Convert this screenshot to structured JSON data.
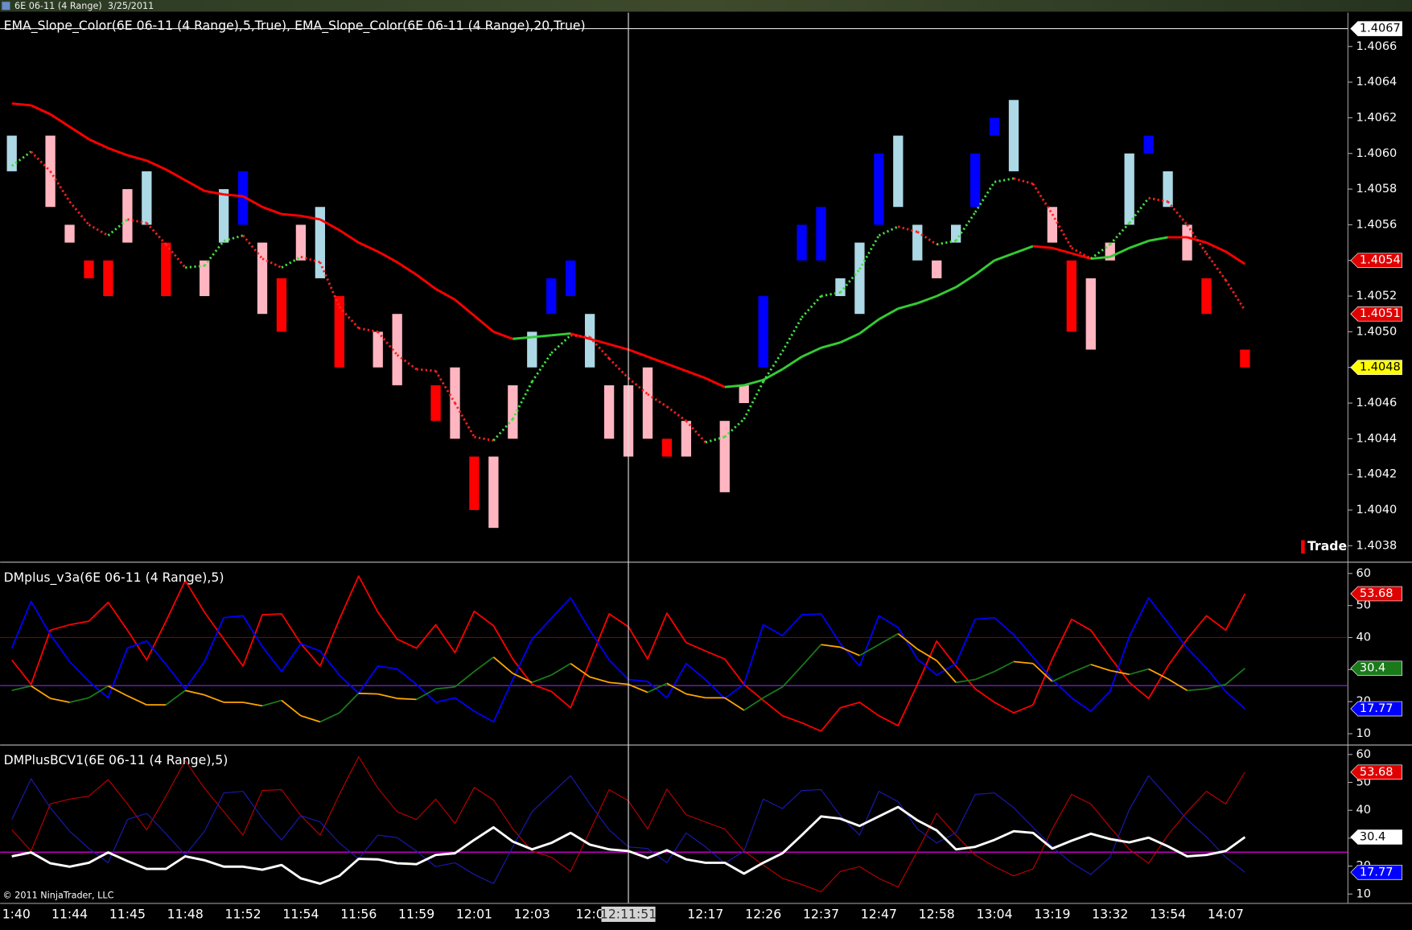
{
  "window_title": "6E 06-11 (4 Range)  3/25/2011",
  "copyright": "© 2011 NinjaTrader, LLC",
  "crosshair": {
    "x": 32,
    "label": "12:11:51"
  },
  "chart_data": [
    {
      "type": "range_bar",
      "title": "EMA_Slope_Color(6E 06-11 (4 Range),5,True), EMA_Slope_Color(6E 06-11 (4 Range),20,True)",
      "ylim": [
        1.40372,
        1.40679
      ],
      "yticks": [
        1.4038,
        {
          "value": 1.404,
          "label": "1.4040"
        },
        1.4042,
        1.4044,
        1.4046,
        1.4048,
        {
          "value": 1.405,
          "label": "1.4050"
        },
        1.4052,
        1.4054,
        1.4056,
        1.4058,
        {
          "value": 1.406,
          "label": "1.4060"
        },
        1.4062,
        1.4064,
        1.4066
      ],
      "price": {
        "name": "Trade",
        "legend_color": "#ff0000",
        "high": [
          1.4061,
          null,
          1.4061,
          1.4056,
          1.4054,
          1.4054,
          1.4058,
          1.4059,
          1.4055,
          null,
          1.4054,
          1.4058,
          1.4059,
          1.4055,
          1.4053,
          1.4056,
          1.4057,
          1.4052,
          null,
          1.405,
          1.4051,
          null,
          1.4047,
          1.4048,
          1.4043,
          1.4043,
          1.4047,
          1.405,
          1.4053,
          1.4054,
          1.4051,
          1.4047,
          1.4047,
          1.4048,
          1.4044,
          1.4045,
          null,
          1.4045,
          1.4047,
          1.4052,
          null,
          1.4056,
          1.4057,
          1.4053,
          1.4055,
          1.406,
          1.4061,
          1.4056,
          1.4054,
          1.4056,
          1.406,
          1.4062,
          1.4063,
          null,
          1.4057,
          1.4054,
          1.4053,
          1.4055,
          1.406,
          1.4061,
          1.4059,
          1.4056,
          1.4053,
          null,
          1.4049
        ],
        "low": [
          1.4059,
          null,
          1.4057,
          1.4055,
          1.4053,
          1.4052,
          1.4055,
          1.4056,
          1.4052,
          null,
          1.4052,
          1.4055,
          1.4056,
          1.4051,
          1.405,
          1.4054,
          1.4053,
          1.4048,
          null,
          1.4048,
          1.4047,
          null,
          1.4045,
          1.4044,
          1.404,
          1.4039,
          1.4044,
          1.4048,
          1.4051,
          1.4052,
          1.4048,
          1.4044,
          1.4043,
          1.4044,
          1.4043,
          1.4043,
          null,
          1.4041,
          1.4046,
          1.4048,
          null,
          1.4054,
          1.4054,
          1.4052,
          1.4051,
          1.4056,
          1.4057,
          1.4054,
          1.4053,
          1.4055,
          1.4057,
          1.4061,
          1.4059,
          null,
          1.4055,
          1.405,
          1.4049,
          1.4054,
          1.4056,
          1.406,
          1.4057,
          1.4054,
          1.4051,
          null,
          1.4048
        ],
        "colors": [
          "#add8e6",
          null,
          "#ffb6c1",
          "#ffb6c1",
          "#ff0000",
          "#ff0000",
          "#ffb6c1",
          "#add8e6",
          "#ff0000",
          null,
          "#ffb6c1",
          "#add8e6",
          "#0000ff",
          "#ffb6c1",
          "#ff0000",
          "#ffb6c1",
          "#add8e6",
          "#ff0000",
          null,
          "#ffb6c1",
          "#ffb6c1",
          null,
          "#ff0000",
          "#ffb6c1",
          "#ff0000",
          "#ffb6c1",
          "#ffb6c1",
          "#add8e6",
          "#0000ff",
          "#0000ff",
          "#add8e6",
          "#ffb6c1",
          "#ffb6c1",
          "#ffb6c1",
          "#ff0000",
          "#ffb6c1",
          null,
          "#ffb6c1",
          "#ffb6c1",
          "#0000ff",
          null,
          "#0000ff",
          "#0000ff",
          "#add8e6",
          "#add8e6",
          "#0000ff",
          "#add8e6",
          "#add8e6",
          "#ffb6c1",
          "#add8e6",
          "#0000ff",
          "#0000ff",
          "#add8e6",
          null,
          "#ffb6c1",
          "#ff0000",
          "#ffb6c1",
          "#ffb6c1",
          "#add8e6",
          "#0000ff",
          "#add8e6",
          "#ffb6c1",
          "#ff0000",
          null,
          "#ff0000"
        ]
      },
      "series": [
        {
          "up_color": "#33cc33",
          "down_color": "#ff0000",
          "style": "thick",
          "values": [
            1.40628,
            1.40627,
            1.40622,
            1.40615,
            1.40608,
            1.40603,
            1.40599,
            1.40596,
            1.40591,
            1.40585,
            1.40579,
            1.40577,
            1.40576,
            1.4057,
            1.40566,
            1.40565,
            1.40563,
            1.40557,
            1.4055,
            1.40545,
            1.40539,
            1.40532,
            1.40524,
            1.40518,
            1.40509,
            1.405,
            1.40496,
            1.40497,
            1.40498,
            1.40499,
            1.40496,
            1.40493,
            1.4049,
            1.40486,
            1.40482,
            1.40478,
            1.40474,
            1.40469,
            1.4047,
            1.40473,
            1.40479,
            1.40486,
            1.40491,
            1.40494,
            1.40499,
            1.40507,
            1.40513,
            1.40516,
            1.4052,
            1.40525,
            1.40532,
            1.4054,
            1.40544,
            1.40548,
            1.40547,
            1.40544,
            1.40541,
            1.40542,
            1.40547,
            1.40551,
            1.40553,
            1.40553,
            1.4055,
            1.40545,
            1.40538
          ]
        },
        {
          "up_color": "#44dd44",
          "down_color": "#ff2020",
          "style": "dotted",
          "values": [
            1.40593,
            1.40601,
            1.4059,
            1.40573,
            1.4056,
            1.40554,
            1.40563,
            1.40561,
            1.40549,
            1.40536,
            1.40537,
            1.40551,
            1.40554,
            1.40541,
            1.40536,
            1.40542,
            1.40539,
            1.40514,
            1.40502,
            1.405,
            1.40487,
            1.40479,
            1.40478,
            1.4046,
            1.40441,
            1.40439,
            1.40451,
            1.40472,
            1.40488,
            1.40498,
            1.40497,
            1.40485,
            1.40474,
            1.40465,
            1.40458,
            1.4045,
            1.40438,
            1.40441,
            1.40451,
            1.40472,
            1.40489,
            1.40508,
            1.4052,
            1.40522,
            1.40535,
            1.40554,
            1.40559,
            1.40556,
            1.40549,
            1.40551,
            1.40567,
            1.40584,
            1.40586,
            1.40583,
            1.40566,
            1.40547,
            1.40541,
            1.40549,
            1.40561,
            1.40575,
            1.40573,
            1.4056,
            1.40544,
            1.40529,
            1.40512
          ]
        }
      ],
      "markers": [
        {
          "value": 1.4067,
          "color": "#ffffff",
          "text_color": "#000000",
          "line": true
        },
        {
          "value": 1.4054,
          "color": "#e00000",
          "text_color": "#ffffff"
        },
        {
          "value": 1.4051,
          "color": "#e00000",
          "text_color": "#ffffff"
        },
        {
          "value": 1.4048,
          "color": "#ffff00",
          "text_color": "#000000"
        }
      ]
    },
    {
      "type": "line",
      "title": "DMplus_v3a(6E 06-11 (4 Range),5)",
      "ylim": [
        6.9,
        62.8
      ],
      "yticks": [
        10,
        20,
        30,
        40,
        50,
        60
      ],
      "hlines": [
        {
          "value": 40,
          "color": "#800000"
        },
        {
          "value": 25,
          "color": "#8a2be2"
        }
      ],
      "series": [
        {
          "color": "#ff0000",
          "style": "normal",
          "values": [
            33.0,
            25.4,
            42.3,
            44.0,
            45.1,
            51.0,
            42.3,
            33.0,
            45.1,
            57.8,
            47.9,
            39.5,
            31.1,
            47.1,
            47.4,
            38.1,
            31.1,
            45.7,
            59.2,
            47.9,
            39.5,
            36.7,
            44.0,
            35.3,
            48.2,
            43.7,
            33.3,
            25.4,
            23.2,
            18.1,
            32.5,
            47.4,
            43.4,
            33.3,
            47.6,
            38.4,
            35.8,
            33.3,
            25.4,
            20.4,
            15.6,
            13.4,
            10.8,
            18.1,
            19.8,
            15.6,
            12.5,
            25.4,
            38.9,
            31.1,
            24.0,
            19.8,
            16.5,
            19.0,
            33.3,
            45.7,
            42.3,
            33.9,
            26.0,
            21.0,
            31.1,
            39.5,
            46.8,
            42.3,
            53.68
          ]
        },
        {
          "color": "#0000ff",
          "style": "normal",
          "values": [
            36.7,
            51.3,
            40.9,
            32.5,
            26.3,
            21.2,
            36.7,
            38.9,
            31.6,
            24.0,
            32.5,
            46.2,
            46.8,
            37.2,
            29.4,
            38.1,
            35.8,
            28.3,
            22.6,
            31.1,
            30.2,
            25.4,
            19.8,
            21.2,
            17.0,
            13.7,
            26.9,
            39.5,
            46.0,
            52.4,
            42.3,
            33.0,
            26.9,
            26.3,
            21.2,
            31.9,
            26.9,
            21.0,
            25.4,
            44.0,
            40.6,
            47.1,
            47.4,
            38.1,
            31.1,
            46.8,
            43.1,
            33.3,
            28.3,
            31.9,
            45.7,
            46.2,
            40.9,
            33.9,
            26.9,
            21.2,
            17.0,
            23.2,
            40.3,
            52.4,
            44.6,
            36.7,
            30.5,
            23.2,
            17.77
          ]
        },
        {
          "up_color": "#1a7a1a",
          "down_color": "#ffa500",
          "style": "normal",
          "values": [
            23.5,
            24.9,
            21.0,
            19.8,
            21.2,
            24.9,
            21.8,
            19.0,
            19.0,
            23.5,
            22.1,
            19.8,
            19.8,
            18.7,
            20.4,
            15.6,
            13.7,
            16.5,
            22.6,
            22.4,
            21.0,
            20.7,
            24.0,
            24.6,
            29.4,
            33.9,
            28.8,
            26.0,
            28.3,
            31.9,
            27.7,
            26.0,
            25.4,
            22.9,
            25.7,
            22.4,
            21.2,
            21.2,
            17.3,
            21.2,
            24.6,
            31.1,
            37.8,
            37.0,
            34.4,
            37.8,
            41.2,
            36.4,
            32.8,
            26.0,
            26.9,
            29.4,
            32.5,
            31.9,
            26.3,
            29.1,
            31.6,
            29.7,
            28.5,
            30.2,
            27.1,
            23.5,
            24.0,
            25.4,
            30.4
          ]
        }
      ],
      "markers": [
        {
          "value": 53.68,
          "color": "#e00000",
          "text_color": "#ffffff"
        },
        {
          "value": 30.4,
          "color": "#1a7a1a",
          "text_color": "#ffffff"
        },
        {
          "value": 17.77,
          "color": "#0000ff",
          "text_color": "#ffffff"
        }
      ]
    },
    {
      "type": "line",
      "title": "DMPlusBCV1(6E 06-11 (4 Range),5)",
      "ylim": [
        7.1,
        62.6
      ],
      "yticks": [
        10,
        20,
        30,
        40,
        50,
        60
      ],
      "hlines": [
        {
          "value": 25,
          "color": "#ff00ff"
        }
      ],
      "categories": [
        "1:40",
        null,
        null,
        "11:44",
        null,
        null,
        "11:45",
        null,
        null,
        "11:48",
        null,
        null,
        "11:52",
        null,
        null,
        "11:54",
        null,
        null,
        "11:56",
        null,
        null,
        "11:59",
        null,
        null,
        "12:01",
        null,
        null,
        "12:03",
        null,
        null,
        "12:0",
        null,
        null,
        "2",
        null,
        null,
        "12:17",
        null,
        null,
        "12:26",
        null,
        null,
        "12:37",
        null,
        null,
        "12:47",
        null,
        null,
        "12:58",
        null,
        null,
        "13:04",
        null,
        null,
        "13:19",
        null,
        null,
        "13:32",
        null,
        null,
        "13:54",
        null,
        null,
        "14:07",
        null
      ],
      "series": [
        {
          "color": "#c00000",
          "style": "thin",
          "values": [
            33.0,
            25.4,
            42.3,
            44.0,
            45.1,
            51.0,
            42.3,
            33.0,
            45.1,
            57.8,
            47.9,
            39.5,
            31.1,
            47.1,
            47.4,
            38.1,
            31.1,
            45.7,
            59.2,
            47.9,
            39.5,
            36.7,
            44.0,
            35.3,
            48.2,
            43.7,
            33.3,
            25.4,
            23.2,
            18.1,
            32.5,
            47.4,
            43.4,
            33.3,
            47.6,
            38.4,
            35.8,
            33.3,
            25.4,
            20.4,
            15.6,
            13.4,
            10.8,
            18.1,
            19.8,
            15.6,
            12.5,
            25.4,
            38.9,
            31.1,
            24.0,
            19.8,
            16.5,
            19.0,
            33.3,
            45.7,
            42.3,
            33.9,
            26.0,
            21.0,
            31.1,
            39.5,
            46.8,
            42.3,
            53.68
          ]
        },
        {
          "color": "#1a1ab4",
          "style": "thin",
          "values": [
            36.7,
            51.3,
            40.9,
            32.5,
            26.3,
            21.2,
            36.7,
            38.9,
            31.6,
            24.0,
            32.5,
            46.2,
            46.8,
            37.2,
            29.4,
            38.1,
            35.8,
            28.3,
            22.6,
            31.1,
            30.2,
            25.4,
            19.8,
            21.2,
            17.0,
            13.7,
            26.9,
            39.5,
            46.0,
            52.4,
            42.3,
            33.0,
            26.9,
            26.3,
            21.2,
            31.9,
            26.9,
            21.0,
            25.4,
            44.0,
            40.6,
            47.1,
            47.4,
            38.1,
            31.1,
            46.8,
            43.1,
            33.3,
            28.3,
            31.9,
            45.7,
            46.2,
            40.9,
            33.9,
            26.9,
            21.2,
            17.0,
            23.2,
            40.3,
            52.4,
            44.6,
            36.7,
            30.5,
            23.2,
            17.77
          ]
        },
        {
          "color": "#ffffff",
          "style": "thick",
          "values": [
            23.5,
            24.9,
            21.0,
            19.8,
            21.2,
            24.9,
            21.8,
            19.0,
            19.0,
            23.5,
            22.1,
            19.8,
            19.8,
            18.7,
            20.4,
            15.6,
            13.7,
            16.5,
            22.6,
            22.4,
            21.0,
            20.7,
            24.0,
            24.6,
            29.4,
            33.9,
            28.8,
            26.0,
            28.3,
            31.9,
            27.7,
            26.0,
            25.4,
            22.9,
            25.7,
            22.4,
            21.2,
            21.2,
            17.3,
            21.2,
            24.6,
            31.1,
            37.8,
            37.0,
            34.4,
            37.8,
            41.2,
            36.4,
            32.8,
            26.0,
            26.9,
            29.4,
            32.5,
            31.9,
            26.3,
            29.1,
            31.6,
            29.7,
            28.5,
            30.2,
            27.1,
            23.5,
            24.0,
            25.4,
            30.4
          ]
        }
      ],
      "markers": [
        {
          "value": 53.68,
          "color": "#e00000",
          "text_color": "#ffffff"
        },
        {
          "value": 30.4,
          "color": "#ffffff",
          "text_color": "#000000"
        },
        {
          "value": 17.77,
          "color": "#0000ff",
          "text_color": "#ffffff"
        }
      ]
    }
  ]
}
